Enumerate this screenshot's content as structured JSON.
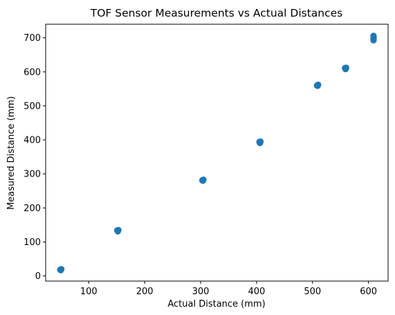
{
  "chart_data": {
    "type": "scatter",
    "title": "TOF Sensor Measurements vs Actual Distances",
    "xlabel": "Actual Distance (mm)",
    "ylabel": "Measured Distance (mm)",
    "xlim": [
      23,
      635
    ],
    "ylim": [
      -15,
      740
    ],
    "xticks": [
      100,
      200,
      300,
      400,
      500,
      600
    ],
    "yticks": [
      0,
      100,
      200,
      300,
      400,
      500,
      600,
      700
    ],
    "grid": false,
    "marker_color": "#1f77b4",
    "series": [
      {
        "points": [
          {
            "x": 50,
            "y": 17
          },
          {
            "x": 50,
            "y": 19
          },
          {
            "x": 51,
            "y": 20
          },
          {
            "x": 49,
            "y": 18
          },
          {
            "x": 152,
            "y": 131
          },
          {
            "x": 152,
            "y": 133
          },
          {
            "x": 153,
            "y": 135
          },
          {
            "x": 151,
            "y": 134
          },
          {
            "x": 304,
            "y": 280
          },
          {
            "x": 304,
            "y": 282
          },
          {
            "x": 305,
            "y": 283
          },
          {
            "x": 303,
            "y": 281
          },
          {
            "x": 406,
            "y": 391
          },
          {
            "x": 406,
            "y": 393
          },
          {
            "x": 407,
            "y": 395
          },
          {
            "x": 405,
            "y": 394
          },
          {
            "x": 509,
            "y": 559
          },
          {
            "x": 509,
            "y": 561
          },
          {
            "x": 510,
            "y": 562
          },
          {
            "x": 508,
            "y": 560
          },
          {
            "x": 559,
            "y": 608
          },
          {
            "x": 559,
            "y": 610
          },
          {
            "x": 560,
            "y": 612
          },
          {
            "x": 558,
            "y": 611
          },
          {
            "x": 609,
            "y": 693
          },
          {
            "x": 609,
            "y": 696
          },
          {
            "x": 609,
            "y": 700
          },
          {
            "x": 609,
            "y": 703
          },
          {
            "x": 609,
            "y": 706
          }
        ]
      }
    ]
  }
}
